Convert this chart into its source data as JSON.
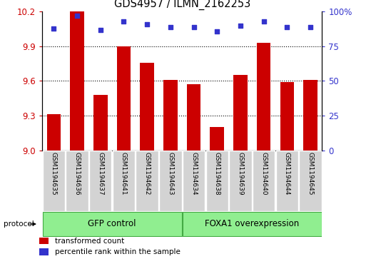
{
  "title": "GDS4957 / ILMN_2162253",
  "samples": [
    "GSM1194635",
    "GSM1194636",
    "GSM1194637",
    "GSM1194641",
    "GSM1194642",
    "GSM1194643",
    "GSM1194634",
    "GSM1194638",
    "GSM1194639",
    "GSM1194640",
    "GSM1194644",
    "GSM1194645"
  ],
  "transformed_counts": [
    9.31,
    10.2,
    9.48,
    9.9,
    9.76,
    9.61,
    9.57,
    9.2,
    9.65,
    9.93,
    9.59,
    9.61
  ],
  "percentile_ranks": [
    88,
    97,
    87,
    93,
    91,
    89,
    89,
    86,
    90,
    93,
    89,
    89
  ],
  "groups": [
    {
      "label": "GFP control",
      "start": 0,
      "end": 6,
      "color": "#90EE90"
    },
    {
      "label": "FOXA1 overexpression",
      "start": 6,
      "end": 12,
      "color": "#90EE90"
    }
  ],
  "bar_color": "#CC0000",
  "dot_color": "#3333CC",
  "ylim_left": [
    9.0,
    10.2
  ],
  "ylim_right": [
    0,
    100
  ],
  "yticks_left": [
    9.0,
    9.3,
    9.6,
    9.9,
    10.2
  ],
  "yticks_right": [
    0,
    25,
    50,
    75,
    100
  ],
  "ytick_labels_right": [
    "0",
    "25",
    "50",
    "75",
    "100%"
  ],
  "grid_values": [
    9.3,
    9.6,
    9.9
  ],
  "bg_color": "#ffffff",
  "tick_label_area_color": "#d3d3d3",
  "protocol_label": "protocol",
  "legend_items": [
    {
      "color": "#CC0000",
      "label": "transformed count"
    },
    {
      "color": "#3333CC",
      "label": "percentile rank within the sample"
    }
  ]
}
